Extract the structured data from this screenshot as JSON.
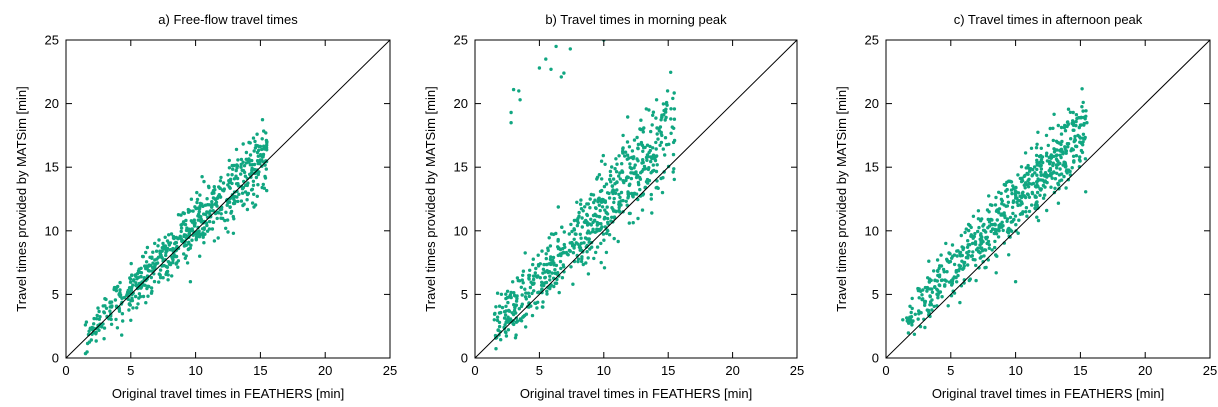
{
  "colors": {
    "points": "#11a681",
    "diagonal": "#000000",
    "axes": "#000000"
  },
  "chart_data": [
    {
      "type": "scatter",
      "title": "a) Free-flow travel times",
      "xlabel": "Original travel times in FEATHERS [min]",
      "ylabel": "Travel times provided by MATSim [min]",
      "xlim": [
        0,
        25
      ],
      "ylim": [
        0,
        25
      ],
      "xticks": [
        "0",
        "5",
        "10",
        "15",
        "20",
        "25"
      ],
      "yticks": [
        "0",
        "5",
        "10",
        "15",
        "20",
        "25"
      ],
      "grid": false,
      "reference_line": "y = x",
      "trend": {
        "x_range": [
          1.5,
          15.5
        ],
        "slope": 1.0,
        "intercept": 0.3,
        "spread": 1.2,
        "count": 650,
        "seed": 11
      },
      "points": [
        [
          15.5,
          17.0
        ],
        [
          14.9,
          16.6
        ],
        [
          1.5,
          2.6
        ],
        [
          2.3,
          1.9
        ],
        [
          4.3,
          1.8
        ],
        [
          9.6,
          6.0
        ],
        [
          11.0,
          13.5
        ],
        [
          12.5,
          14.4
        ],
        [
          13.5,
          15.0
        ],
        [
          3.0,
          4.1
        ]
      ]
    },
    {
      "type": "scatter",
      "title": "b) Travel times in morning peak",
      "xlabel": "Original travel times in FEATHERS [min]",
      "ylabel": "Travel times provided by MATSim [min]",
      "xlim": [
        0,
        25
      ],
      "ylim": [
        0,
        25
      ],
      "xticks": [
        "0",
        "5",
        "10",
        "15",
        "20",
        "25"
      ],
      "yticks": [
        "0",
        "5",
        "10",
        "15",
        "20",
        "25"
      ],
      "grid": false,
      "reference_line": "y = x",
      "trend": {
        "x_range": [
          1.5,
          15.5
        ],
        "slope": 1.12,
        "intercept": 0.6,
        "spread": 1.7,
        "count": 650,
        "seed": 23
      },
      "points": [
        [
          2.8,
          19.3
        ],
        [
          2.8,
          18.5
        ],
        [
          3.0,
          21.1
        ],
        [
          3.4,
          21.0
        ],
        [
          3.5,
          20.3
        ],
        [
          5.0,
          22.8
        ],
        [
          5.5,
          23.5
        ],
        [
          5.9,
          22.7
        ],
        [
          6.3,
          24.5
        ],
        [
          6.7,
          22.1
        ],
        [
          6.9,
          22.4
        ],
        [
          7.4,
          24.3
        ],
        [
          10.0,
          25.0
        ],
        [
          14.1,
          20.3
        ],
        [
          15.2,
          18.8
        ],
        [
          13.5,
          19.5
        ],
        [
          1.5,
          3.0
        ],
        [
          1.8,
          2.2
        ],
        [
          2.4,
          2.0
        ],
        [
          9.8,
          7.5
        ],
        [
          10.2,
          8.3
        ],
        [
          11.5,
          17.5
        ],
        [
          12.8,
          18.0
        ],
        [
          14.5,
          17.5
        ]
      ]
    },
    {
      "type": "scatter",
      "title": "c) Travel times in afternoon peak",
      "xlabel": "Original travel times in FEATHERS [min]",
      "ylabel": "Travel times provided by MATSim [min]",
      "xlim": [
        0,
        25
      ],
      "ylim": [
        0,
        25
      ],
      "xticks": [
        "0",
        "5",
        "10",
        "15",
        "20",
        "25"
      ],
      "yticks": [
        "0",
        "5",
        "10",
        "15",
        "20",
        "25"
      ],
      "grid": false,
      "reference_line": "y = x",
      "trend": {
        "x_range": [
          1.5,
          15.5
        ],
        "slope": 1.08,
        "intercept": 1.5,
        "spread": 1.4,
        "count": 650,
        "seed": 37
      },
      "points": [
        [
          15.5,
          18.5
        ],
        [
          15.0,
          18.3
        ],
        [
          14.5,
          17.9
        ],
        [
          1.3,
          3.0
        ],
        [
          2.0,
          2.6
        ],
        [
          3.0,
          2.4
        ],
        [
          10.0,
          6.0
        ],
        [
          8.5,
          6.7
        ],
        [
          4.8,
          4.1
        ],
        [
          3.3,
          3.6
        ],
        [
          12.0,
          15.6
        ],
        [
          13.0,
          16.2
        ]
      ]
    }
  ]
}
